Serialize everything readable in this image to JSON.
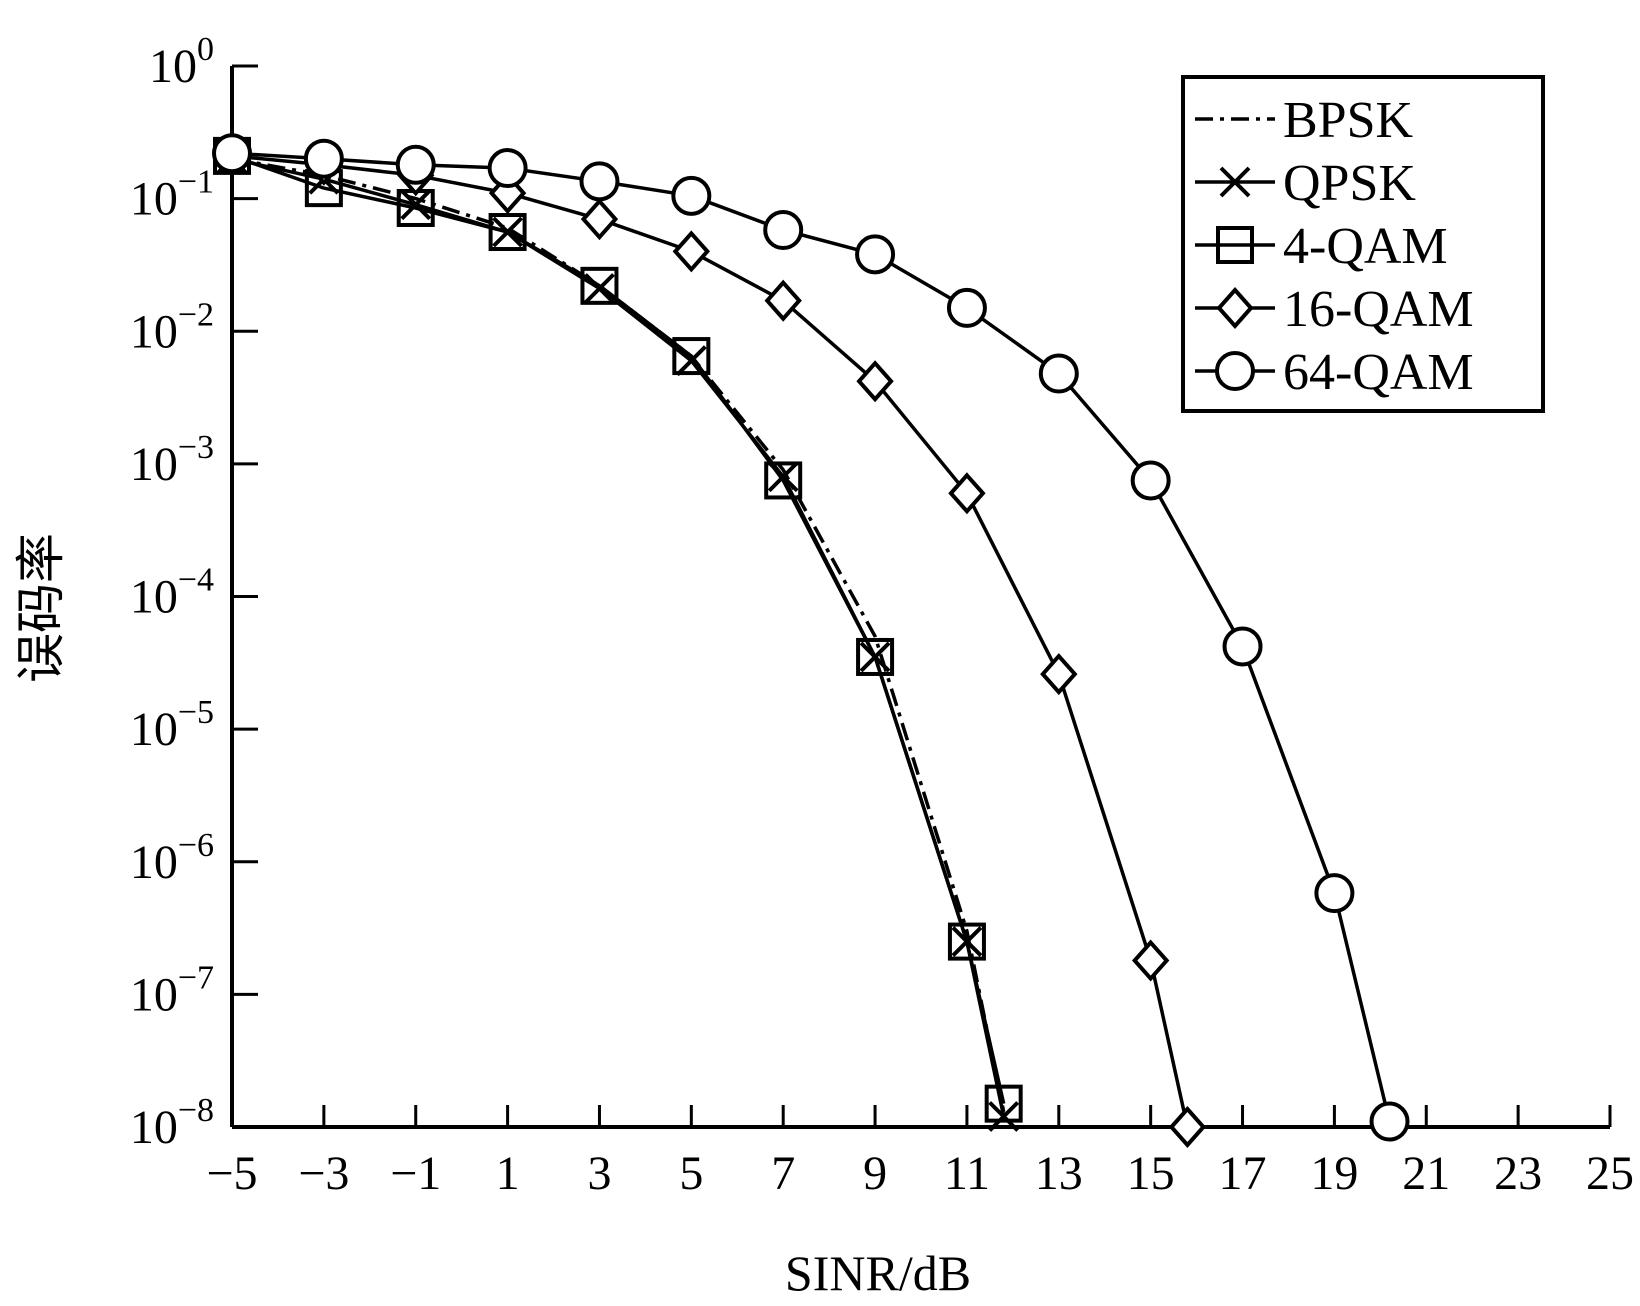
{
  "chart_data": {
    "type": "line",
    "xlabel": "SINR/dB",
    "ylabel": "误码率",
    "xlim": [
      -5,
      25
    ],
    "ylim": [
      1e-08,
      1
    ],
    "yscale": "log",
    "x_ticks": [
      -5,
      -3,
      -1,
      1,
      3,
      5,
      7,
      9,
      11,
      13,
      15,
      17,
      19,
      21,
      23,
      25
    ],
    "x_tick_labels": [
      "−5",
      "−3",
      "−1",
      "1",
      "3",
      "5",
      "7",
      "9",
      "11",
      "13",
      "15",
      "17",
      "19",
      "21",
      "23",
      "25"
    ],
    "y_ticks": [
      {
        "value": 1,
        "base": "10",
        "exp": "0"
      },
      {
        "value": 0.1,
        "base": "10",
        "exp": "−1"
      },
      {
        "value": 0.01,
        "base": "10",
        "exp": "−2"
      },
      {
        "value": 0.001,
        "base": "10",
        "exp": "−3"
      },
      {
        "value": 0.0001,
        "base": "10",
        "exp": "−4"
      },
      {
        "value": 1e-05,
        "base": "10",
        "exp": "−5"
      },
      {
        "value": 1e-06,
        "base": "10",
        "exp": "−6"
      },
      {
        "value": 1e-07,
        "base": "10",
        "exp": "−7"
      },
      {
        "value": 1e-08,
        "base": "10",
        "exp": "−8"
      }
    ],
    "grid": false,
    "legend_position": "top-right",
    "series": [
      {
        "name": "BPSK",
        "line": "dashdot",
        "marker": "none",
        "x": [
          -5,
          -3,
          -1,
          1,
          3,
          5,
          7,
          9,
          11,
          11.8
        ],
        "y": [
          0.2,
          0.15,
          0.1,
          0.06,
          0.022,
          0.0065,
          0.0009,
          5e-05,
          3e-07,
          1.3e-08
        ]
      },
      {
        "name": "QPSK",
        "line": "solid",
        "marker": "x",
        "x": [
          -5,
          -3,
          -1,
          1,
          3,
          5,
          7,
          9,
          11,
          11.8
        ],
        "y": [
          0.2,
          0.14,
          0.09,
          0.056,
          0.021,
          0.006,
          0.0008,
          3.5e-05,
          2.5e-07,
          1.2e-08
        ]
      },
      {
        "name": "4-QAM",
        "line": "solid",
        "marker": "square",
        "x": [
          -5,
          -3,
          -1,
          1,
          3,
          5,
          7,
          9,
          11,
          11.8
        ],
        "y": [
          0.21,
          0.12,
          0.085,
          0.056,
          0.022,
          0.0065,
          0.00075,
          3.5e-05,
          2.5e-07,
          1.5e-08
        ]
      },
      {
        "name": "16-QAM",
        "line": "solid",
        "marker": "diamond",
        "x": [
          -5,
          -3,
          -1,
          1,
          3,
          5,
          7,
          9,
          11,
          13,
          15,
          15.8
        ],
        "y": [
          0.21,
          0.18,
          0.15,
          0.11,
          0.07,
          0.04,
          0.017,
          0.0042,
          0.0006,
          2.6e-05,
          1.8e-07,
          1e-08
        ]
      },
      {
        "name": "64-QAM",
        "line": "solid",
        "marker": "circle",
        "x": [
          -5,
          -3,
          -1,
          1,
          3,
          5,
          7,
          9,
          11,
          13,
          15,
          17,
          19,
          20.2
        ],
        "y": [
          0.22,
          0.2,
          0.18,
          0.17,
          0.135,
          0.105,
          0.058,
          0.038,
          0.015,
          0.0048,
          0.00075,
          4.2e-05,
          5.8e-07,
          1.1e-08
        ]
      }
    ]
  }
}
